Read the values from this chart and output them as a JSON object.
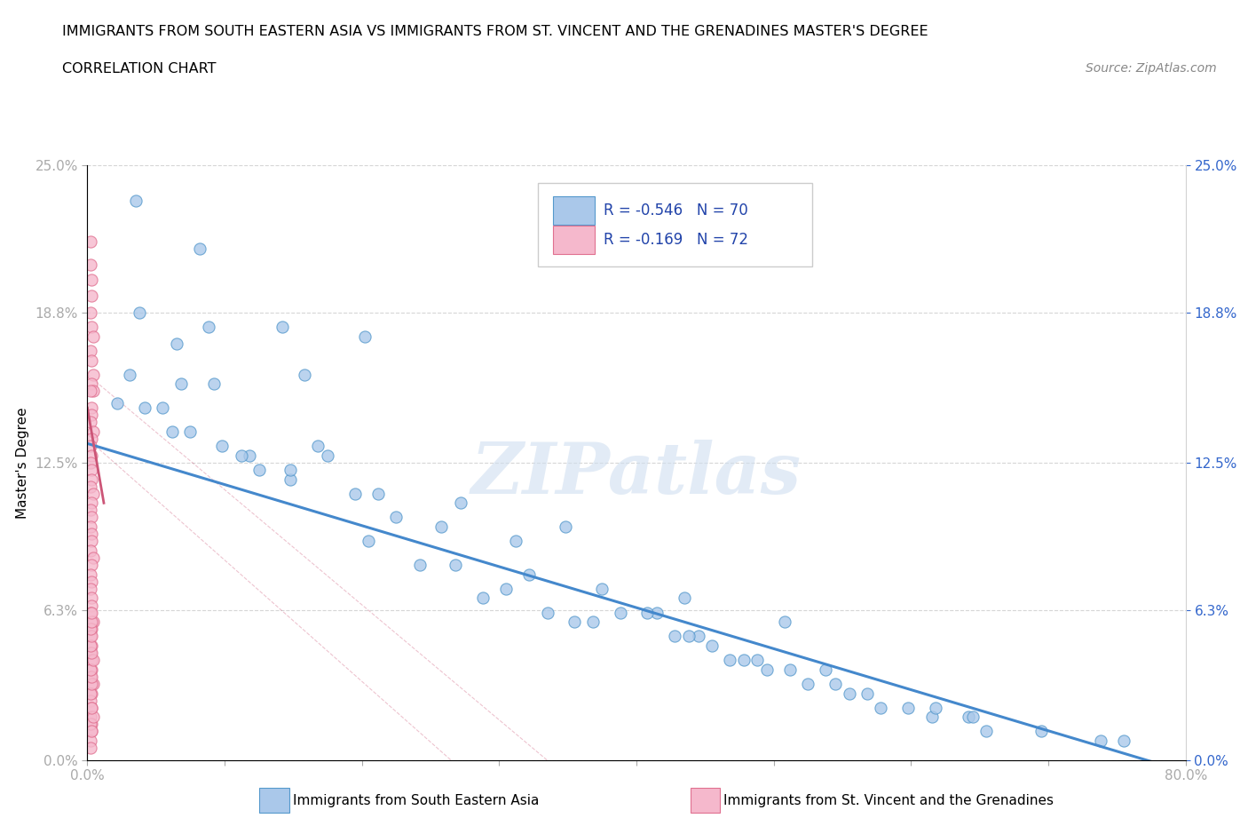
{
  "title_line1": "IMMIGRANTS FROM SOUTH EASTERN ASIA VS IMMIGRANTS FROM ST. VINCENT AND THE GRENADINES MASTER'S DEGREE",
  "title_line2": "CORRELATION CHART",
  "source_text": "Source: ZipAtlas.com",
  "ylabel": "Master's Degree",
  "xlim": [
    0.0,
    0.8
  ],
  "ylim": [
    0.0,
    0.25
  ],
  "ytick_vals": [
    0.0,
    0.063,
    0.125,
    0.188,
    0.25
  ],
  "ytick_labels": [
    "0.0%",
    "6.3%",
    "12.5%",
    "18.8%",
    "25.0%"
  ],
  "xtick_vals": [
    0.0,
    0.1,
    0.2,
    0.3,
    0.4,
    0.5,
    0.6,
    0.7,
    0.8
  ],
  "xtick_labels": [
    "0.0%",
    "",
    "",
    "",
    "",
    "",
    "",
    "",
    "80.0%"
  ],
  "blue_color": "#aac8ea",
  "pink_color": "#f5b8cc",
  "blue_edge_color": "#5599cc",
  "pink_edge_color": "#e07090",
  "blue_line_color": "#4488cc",
  "pink_line_color": "#cc5577",
  "blue_R": -0.546,
  "blue_N": 70,
  "pink_R": -0.169,
  "pink_N": 72,
  "label_blue": "Immigrants from South Eastern Asia",
  "label_pink": "Immigrants from St. Vincent and the Grenadines",
  "watermark": "ZIPatlas",
  "blue_line_x0": 0.0,
  "blue_line_y0": 0.133,
  "blue_line_x1": 0.8,
  "blue_line_y1": -0.005,
  "pink_line_x0": 0.0,
  "pink_line_y0": 0.148,
  "pink_line_x1": 0.012,
  "pink_line_y1": 0.108,
  "blue_scatter_x": [
    0.022,
    0.055,
    0.075,
    0.031,
    0.062,
    0.098,
    0.125,
    0.068,
    0.148,
    0.088,
    0.042,
    0.118,
    0.175,
    0.212,
    0.148,
    0.195,
    0.272,
    0.158,
    0.038,
    0.142,
    0.082,
    0.112,
    0.065,
    0.225,
    0.258,
    0.312,
    0.092,
    0.168,
    0.205,
    0.268,
    0.322,
    0.375,
    0.035,
    0.242,
    0.288,
    0.335,
    0.355,
    0.415,
    0.445,
    0.305,
    0.368,
    0.428,
    0.455,
    0.478,
    0.495,
    0.388,
    0.438,
    0.468,
    0.512,
    0.545,
    0.408,
    0.488,
    0.525,
    0.555,
    0.578,
    0.598,
    0.538,
    0.568,
    0.615,
    0.642,
    0.618,
    0.655,
    0.695,
    0.738,
    0.755,
    0.645,
    0.348,
    0.202,
    0.508,
    0.435
  ],
  "blue_scatter_y": [
    0.15,
    0.148,
    0.138,
    0.162,
    0.138,
    0.132,
    0.122,
    0.158,
    0.118,
    0.182,
    0.148,
    0.128,
    0.128,
    0.112,
    0.122,
    0.112,
    0.108,
    0.162,
    0.188,
    0.182,
    0.215,
    0.128,
    0.175,
    0.102,
    0.098,
    0.092,
    0.158,
    0.132,
    0.092,
    0.082,
    0.078,
    0.072,
    0.235,
    0.082,
    0.068,
    0.062,
    0.058,
    0.062,
    0.052,
    0.072,
    0.058,
    0.052,
    0.048,
    0.042,
    0.038,
    0.062,
    0.052,
    0.042,
    0.038,
    0.032,
    0.062,
    0.042,
    0.032,
    0.028,
    0.022,
    0.022,
    0.038,
    0.028,
    0.018,
    0.018,
    0.022,
    0.012,
    0.012,
    0.008,
    0.008,
    0.018,
    0.098,
    0.178,
    0.058,
    0.068
  ],
  "pink_scatter_x": [
    0.002,
    0.002,
    0.003,
    0.003,
    0.002,
    0.003,
    0.004,
    0.002,
    0.003,
    0.004,
    0.003,
    0.004,
    0.002,
    0.003,
    0.003,
    0.002,
    0.004,
    0.003,
    0.002,
    0.003,
    0.002,
    0.003,
    0.003,
    0.002,
    0.004,
    0.003,
    0.002,
    0.003,
    0.002,
    0.003,
    0.003,
    0.002,
    0.004,
    0.003,
    0.002,
    0.003,
    0.002,
    0.003,
    0.003,
    0.002,
    0.004,
    0.003,
    0.002,
    0.003,
    0.002,
    0.003,
    0.003,
    0.002,
    0.004,
    0.003,
    0.002,
    0.003,
    0.002,
    0.003,
    0.003,
    0.002,
    0.004,
    0.003,
    0.002,
    0.003,
    0.002,
    0.003,
    0.003,
    0.002,
    0.004,
    0.003,
    0.002,
    0.003,
    0.002,
    0.003,
    0.003,
    0.002
  ],
  "pink_scatter_y": [
    0.218,
    0.208,
    0.202,
    0.195,
    0.188,
    0.182,
    0.178,
    0.172,
    0.168,
    0.162,
    0.158,
    0.155,
    0.155,
    0.148,
    0.145,
    0.142,
    0.138,
    0.135,
    0.132,
    0.128,
    0.125,
    0.122,
    0.118,
    0.115,
    0.112,
    0.108,
    0.105,
    0.102,
    0.098,
    0.095,
    0.092,
    0.088,
    0.085,
    0.082,
    0.078,
    0.075,
    0.072,
    0.068,
    0.065,
    0.062,
    0.058,
    0.055,
    0.052,
    0.048,
    0.045,
    0.042,
    0.038,
    0.035,
    0.032,
    0.028,
    0.025,
    0.022,
    0.018,
    0.015,
    0.012,
    0.015,
    0.018,
    0.022,
    0.008,
    0.012,
    0.028,
    0.032,
    0.035,
    0.038,
    0.042,
    0.045,
    0.048,
    0.052,
    0.055,
    0.058,
    0.062,
    0.005
  ]
}
